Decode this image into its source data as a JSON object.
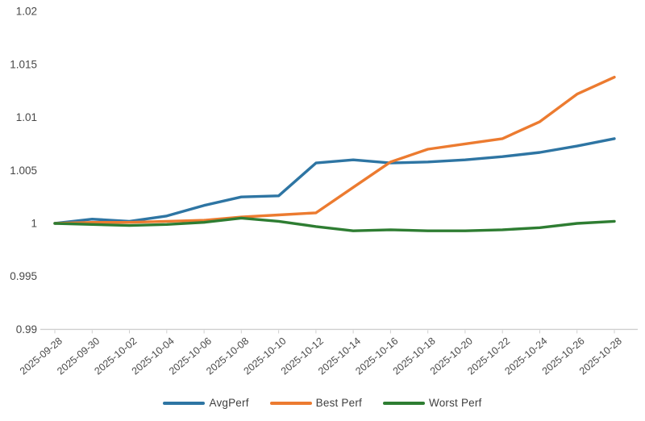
{
  "chart_data": {
    "type": "line",
    "title": "",
    "xlabel": "",
    "ylabel": "",
    "x": [
      "2025-09-28",
      "2025-09-30",
      "2025-10-02",
      "2025-10-04",
      "2025-10-06",
      "2025-10-08",
      "2025-10-10",
      "2025-10-12",
      "2025-10-14",
      "2025-10-16",
      "2025-10-18",
      "2025-10-20",
      "2025-10-22",
      "2025-10-24",
      "2025-10-26",
      "2025-10-28"
    ],
    "series": [
      {
        "name": "AvgPerf",
        "color": "#2e75a3",
        "values": [
          1.0,
          1.0004,
          1.0002,
          1.0007,
          1.0017,
          1.0025,
          1.0026,
          1.0057,
          1.006,
          1.0057,
          1.0058,
          1.006,
          1.0063,
          1.0067,
          1.0073,
          1.008
        ]
      },
      {
        "name": "Best Perf",
        "color": "#ec7b30",
        "values": [
          1.0,
          1.0001,
          1.0001,
          1.0002,
          1.0003,
          1.0006,
          1.0008,
          1.001,
          1.0034,
          1.0058,
          1.007,
          1.0075,
          1.008,
          1.0096,
          1.0122,
          1.0138
        ]
      },
      {
        "name": "Worst Perf",
        "color": "#2e7d32",
        "values": [
          1.0,
          0.9999,
          0.9998,
          0.9999,
          1.0001,
          1.0005,
          1.0002,
          0.9997,
          0.9993,
          0.9994,
          0.9993,
          0.9993,
          0.9994,
          0.9996,
          1.0,
          1.0002
        ]
      }
    ],
    "ylim": [
      0.99,
      1.02
    ],
    "yticks": [
      "0.99",
      "0.995",
      "1",
      "1.005",
      "1.01",
      "1.015",
      "1.02"
    ],
    "grid": false,
    "legend_position": "bottom"
  },
  "colors": {
    "background": "#ffffff",
    "axis_line": "#cfcfcf",
    "tick_text": "#484848",
    "legend_text": "#3f3f3f"
  }
}
